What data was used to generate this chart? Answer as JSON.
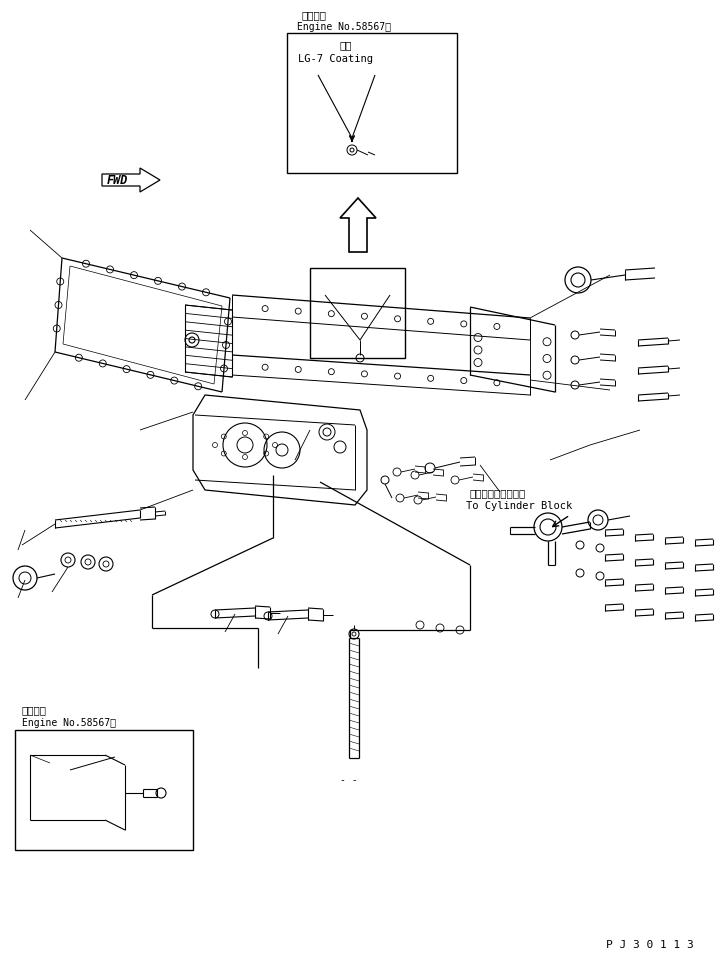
{
  "title": "P J 3 0 1 1 3",
  "bg_color": "#ffffff",
  "line_color": "#000000",
  "fig_width": 7.18,
  "fig_height": 9.55,
  "dpi": 100,
  "top_label_jp": "適用号機",
  "top_label_en": "Engine No.58567～",
  "top_coating_jp": "塗布",
  "top_coating_en": "LG-7 Coating",
  "bottom_label_jp": "適用号機",
  "bottom_label_en": "Engine No.58567～",
  "cylinder_text_jp": "シリンダブロックへ",
  "cylinder_text_en": "To Cylinder Block",
  "fwd_text": "FWD"
}
